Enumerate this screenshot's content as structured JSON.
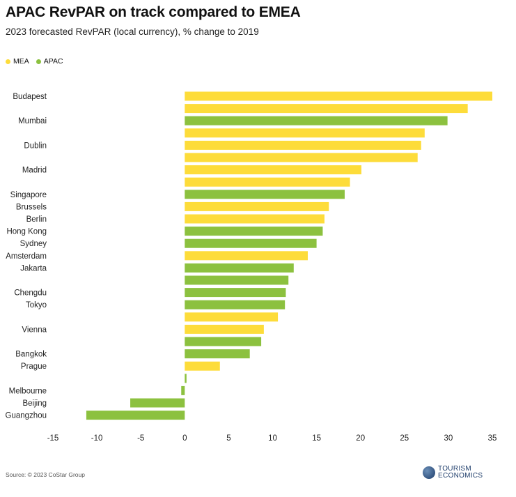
{
  "title": "APAC RevPAR on track compared to EMEA",
  "subtitle": "2023 forecasted RevPAR (local currency), % change to 2019",
  "source": "Source: © 2023 CoStar Group",
  "logo": {
    "line1": "TOURISM",
    "line2": "ECONOMICS",
    "icon": "globe-icon"
  },
  "colors": {
    "MEA": "#fddc3a",
    "APAC": "#8cc13f"
  },
  "chart_data": {
    "type": "bar",
    "orientation": "horizontal",
    "legend": [
      "MEA",
      "APAC"
    ],
    "legend_position": "top-left",
    "xlim": [
      -15,
      35
    ],
    "xticks": [
      -15,
      -10,
      -5,
      0,
      5,
      10,
      15,
      20,
      25,
      30,
      35
    ],
    "grid": false,
    "bars": [
      {
        "label": "Budapest",
        "value": 35.0,
        "series": "MEA"
      },
      {
        "label": "",
        "value": 32.2,
        "series": "MEA"
      },
      {
        "label": "Mumbai",
        "value": 29.9,
        "series": "APAC"
      },
      {
        "label": "",
        "value": 27.3,
        "series": "MEA"
      },
      {
        "label": "Dublin",
        "value": 26.9,
        "series": "MEA"
      },
      {
        "label": "",
        "value": 26.5,
        "series": "MEA"
      },
      {
        "label": "Madrid",
        "value": 20.1,
        "series": "MEA"
      },
      {
        "label": "",
        "value": 18.8,
        "series": "MEA"
      },
      {
        "label": "Singapore",
        "value": 18.2,
        "series": "APAC"
      },
      {
        "label": "Brussels",
        "value": 16.4,
        "series": "MEA"
      },
      {
        "label": "Berlin",
        "value": 15.9,
        "series": "MEA"
      },
      {
        "label": "Hong Kong",
        "value": 15.7,
        "series": "APAC"
      },
      {
        "label": "Sydney",
        "value": 15.0,
        "series": "APAC"
      },
      {
        "label": "Amsterdam",
        "value": 14.0,
        "series": "MEA"
      },
      {
        "label": "Jakarta",
        "value": 12.4,
        "series": "APAC"
      },
      {
        "label": "",
        "value": 11.8,
        "series": "APAC"
      },
      {
        "label": "Chengdu",
        "value": 11.5,
        "series": "APAC"
      },
      {
        "label": "Tokyo",
        "value": 11.4,
        "series": "APAC"
      },
      {
        "label": "",
        "value": 10.6,
        "series": "MEA"
      },
      {
        "label": "Vienna",
        "value": 9.0,
        "series": "MEA"
      },
      {
        "label": "",
        "value": 8.7,
        "series": "APAC"
      },
      {
        "label": "Bangkok",
        "value": 7.4,
        "series": "APAC"
      },
      {
        "label": "Prague",
        "value": 4.0,
        "series": "MEA"
      },
      {
        "label": "",
        "value": 0.2,
        "series": "APAC"
      },
      {
        "label": "Melbourne",
        "value": -0.4,
        "series": "APAC"
      },
      {
        "label": "Beijing",
        "value": -6.2,
        "series": "APAC"
      },
      {
        "label": "Guangzhou",
        "value": -11.2,
        "series": "APAC"
      }
    ]
  }
}
